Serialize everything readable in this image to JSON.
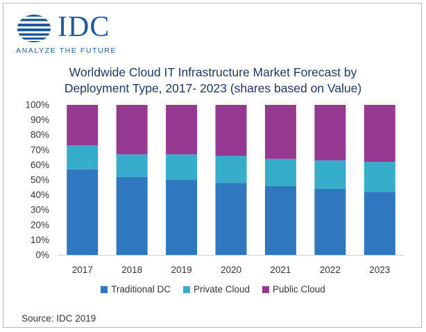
{
  "brand": {
    "name": "IDC",
    "tagline": "ANALYZE THE FUTURE",
    "color": "#1e5aa0"
  },
  "chart_data": {
    "type": "bar",
    "stacked": true,
    "title_line1": "Worldwide Cloud IT Infrastructure Market Forecast by",
    "title_line2": "Deployment Type, 2017- 2023 (shares based on Value)",
    "categories": [
      "2017",
      "2018",
      "2019",
      "2020",
      "2021",
      "2022",
      "2023"
    ],
    "series": [
      {
        "name": "Traditional DC",
        "color": "#2f78bf",
        "values": [
          57,
          52,
          50,
          48,
          46,
          44,
          42
        ]
      },
      {
        "name": "Private Cloud",
        "color": "#36aecb",
        "values": [
          16,
          15,
          17,
          18,
          18,
          19,
          20
        ]
      },
      {
        "name": "Public Cloud",
        "color": "#963a91",
        "values": [
          27,
          33,
          33,
          34,
          36,
          37,
          38
        ]
      }
    ],
    "y_ticks": [
      "0%",
      "10%",
      "20%",
      "30%",
      "40%",
      "50%",
      "60%",
      "70%",
      "80%",
      "90%",
      "100%"
    ],
    "ylim": [
      0,
      100
    ],
    "legend_position": "bottom",
    "grid": false
  },
  "source": "Source: IDC 2019"
}
